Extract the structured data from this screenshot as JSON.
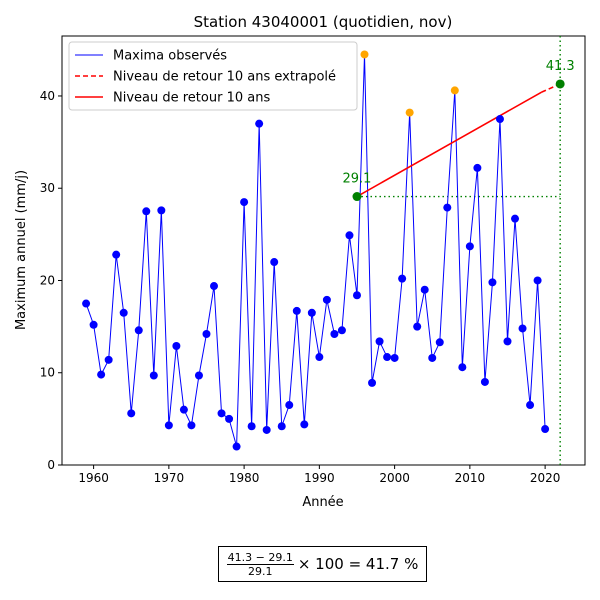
{
  "chart_data": {
    "type": "line",
    "title": "Station 43040001 (quotidien, nov)",
    "xlabel": "Année",
    "ylabel": "Maximum annuel (mm/j)",
    "xlim": [
      1955.8,
      2025.3
    ],
    "ylim": [
      0,
      46.5
    ],
    "xticks": [
      1960,
      1970,
      1980,
      1990,
      2000,
      2010,
      2020
    ],
    "yticks": [
      0,
      10,
      20,
      30,
      40
    ],
    "grid": false,
    "legend_position": "top-left",
    "legend": [
      "Maxima observés",
      "Niveau de retour 10 ans extrapolé",
      "Niveau de retour 10 ans"
    ],
    "colors": {
      "series": "#0000ff",
      "highlight": "#ffa500",
      "return_level": "#ff0000",
      "marker": "#008000"
    },
    "series": [
      {
        "name": "Maxima observés",
        "x": [
          1959,
          1960,
          1961,
          1962,
          1963,
          1964,
          1965,
          1966,
          1967,
          1968,
          1969,
          1970,
          1971,
          1972,
          1973,
          1974,
          1975,
          1976,
          1977,
          1978,
          1979,
          1980,
          1981,
          1982,
          1983,
          1984,
          1985,
          1986,
          1987,
          1988,
          1989,
          1990,
          1991,
          1992,
          1993,
          1994,
          1995,
          1996,
          1997,
          1998,
          1999,
          2000,
          2001,
          2002,
          2003,
          2004,
          2005,
          2006,
          2007,
          2008,
          2009,
          2010,
          2011,
          2012,
          2013,
          2014,
          2015,
          2016,
          2017,
          2018,
          2019,
          2020
        ],
        "y": [
          17.5,
          15.2,
          9.8,
          11.4,
          22.8,
          16.5,
          5.6,
          14.6,
          27.5,
          9.7,
          27.6,
          4.3,
          12.9,
          6.0,
          4.3,
          9.7,
          14.2,
          19.4,
          5.6,
          5.0,
          2.0,
          28.5,
          4.2,
          37.0,
          3.8,
          22.0,
          4.2,
          6.5,
          16.7,
          4.4,
          16.5,
          11.7,
          17.9,
          14.2,
          14.6,
          24.9,
          18.4,
          44.5,
          8.9,
          13.4,
          11.7,
          11.6,
          20.2,
          38.2,
          15.0,
          19.0,
          11.6,
          13.3,
          27.9,
          40.6,
          10.6,
          23.7,
          32.2,
          9.0,
          19.8,
          37.5,
          13.4,
          26.7,
          14.8,
          6.5,
          20.0,
          3.9
        ]
      }
    ],
    "highlight_points": [
      {
        "x": 1996,
        "y": 44.5
      },
      {
        "x": 2002,
        "y": 38.2
      },
      {
        "x": 2008,
        "y": 40.6
      }
    ],
    "return_level_line": {
      "x": [
        1995,
        2019.5
      ],
      "y": [
        29.1,
        40.4
      ]
    },
    "return_level_extrapolated": {
      "x": [
        2019.5,
        2022
      ],
      "y": [
        40.4,
        41.3
      ]
    },
    "start_point": {
      "x": 1995,
      "y": 29.1,
      "label": "29.1"
    },
    "end_point": {
      "x": 2022,
      "y": 41.3,
      "label": "41.3"
    },
    "ref_hline": {
      "y": 29.1,
      "x": [
        1995,
        2022
      ]
    },
    "ref_vline": {
      "x": 2022
    },
    "formula": {
      "numerator": "41.3 − 29.1",
      "denominator": "29.1",
      "rest": "× 100 = 41.7 %"
    }
  }
}
